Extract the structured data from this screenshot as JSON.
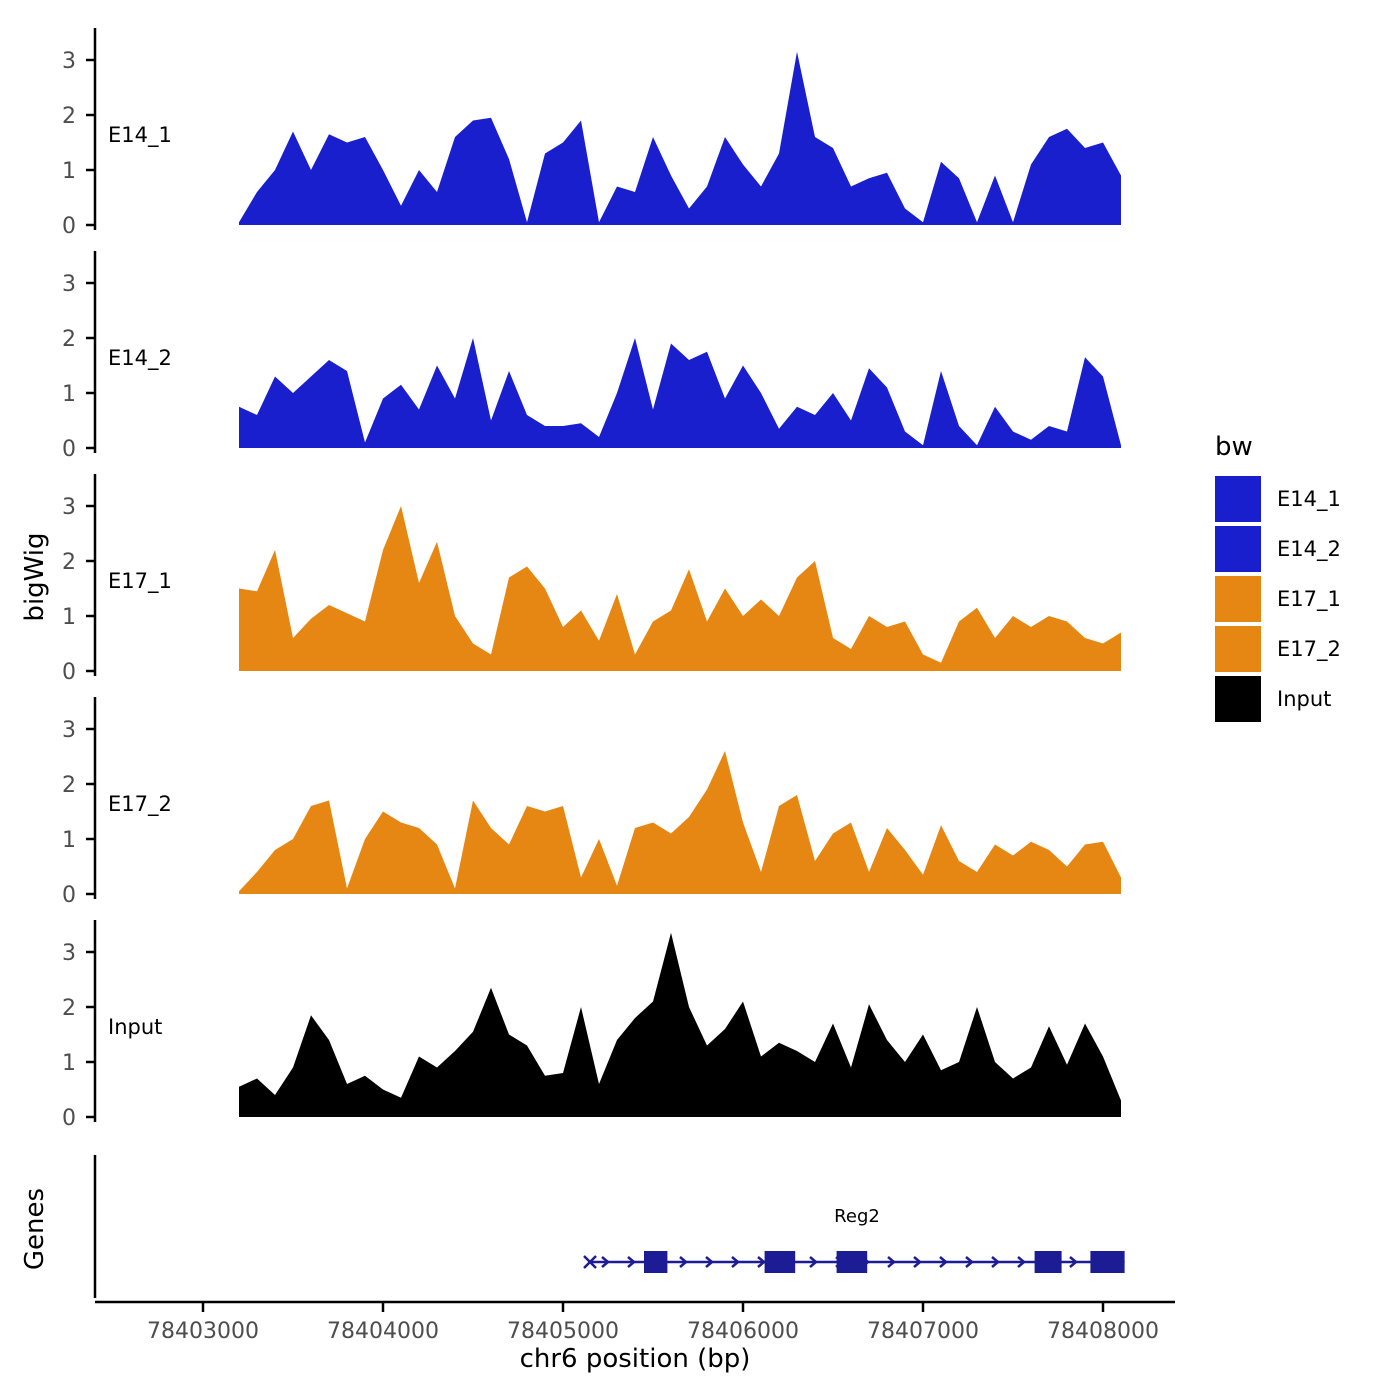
{
  "figure": {
    "y_axis_label": "bigWig",
    "genes_axis_label": "Genes",
    "x_axis_label": "chr6 position (bp)",
    "legend": {
      "title": "bw",
      "items": [
        {
          "label": "E14_1",
          "color": "#1A1FCE"
        },
        {
          "label": "E14_2",
          "color": "#1A1FCE"
        },
        {
          "label": "E17_1",
          "color": "#E68613"
        },
        {
          "label": "E17_2",
          "color": "#E68613"
        },
        {
          "label": "Input",
          "color": "#000000"
        }
      ]
    }
  },
  "chart_data": {
    "type": "area",
    "title": "",
    "xlabel": "chr6 position (bp)",
    "ylabel": "bigWig",
    "x_start": 78403200,
    "x_step": 100,
    "xlim": [
      78402400,
      78408400
    ],
    "ylim": [
      0,
      3.4
    ],
    "x_ticks": [
      78403000,
      78404000,
      78405000,
      78406000,
      78407000,
      78408000
    ],
    "y_ticks": [
      0,
      1,
      2,
      3
    ],
    "grid": false,
    "legend_position": "right",
    "series": [
      {
        "name": "E14_1",
        "color": "#1A1FCE",
        "values": [
          0.05,
          0.6,
          1.0,
          1.7,
          1.0,
          1.65,
          1.5,
          1.6,
          1.0,
          0.35,
          1.0,
          0.6,
          1.6,
          1.9,
          1.95,
          1.2,
          0.05,
          1.3,
          1.5,
          1.9,
          0.05,
          0.7,
          0.6,
          1.6,
          0.9,
          0.3,
          0.7,
          1.6,
          1.1,
          0.7,
          1.3,
          3.15,
          1.6,
          1.4,
          0.7,
          0.85,
          0.95,
          0.3,
          0.05,
          1.15,
          0.85,
          0.05,
          0.9,
          0.05,
          1.1,
          1.6,
          1.75,
          1.4,
          1.5,
          0.9
        ]
      },
      {
        "name": "E14_2",
        "color": "#1A1FCE",
        "values": [
          0.75,
          0.6,
          1.3,
          1.0,
          1.3,
          1.6,
          1.4,
          0.1,
          0.9,
          1.15,
          0.7,
          1.5,
          0.9,
          2.0,
          0.5,
          1.4,
          0.6,
          0.4,
          0.4,
          0.45,
          0.2,
          1.0,
          2.0,
          0.7,
          1.9,
          1.6,
          1.75,
          0.9,
          1.5,
          1.0,
          0.35,
          0.75,
          0.6,
          1.0,
          0.5,
          1.45,
          1.1,
          0.3,
          0.05,
          1.4,
          0.4,
          0.05,
          0.75,
          0.3,
          0.15,
          0.4,
          0.3,
          1.65,
          1.3,
          0.05
        ]
      },
      {
        "name": "E17_1",
        "color": "#E68613",
        "values": [
          1.5,
          1.45,
          2.2,
          0.6,
          0.95,
          1.2,
          1.05,
          0.9,
          2.2,
          3.0,
          1.6,
          2.35,
          1.0,
          0.5,
          0.3,
          1.7,
          1.9,
          1.5,
          0.8,
          1.1,
          0.55,
          1.4,
          0.3,
          0.9,
          1.1,
          1.85,
          0.9,
          1.5,
          1.0,
          1.3,
          1.0,
          1.7,
          2.0,
          0.6,
          0.4,
          1.0,
          0.8,
          0.9,
          0.3,
          0.15,
          0.9,
          1.15,
          0.6,
          1.0,
          0.8,
          1.0,
          0.9,
          0.6,
          0.5,
          0.7
        ]
      },
      {
        "name": "E17_2",
        "color": "#E68613",
        "values": [
          0.05,
          0.4,
          0.8,
          1.0,
          1.6,
          1.7,
          0.1,
          1.0,
          1.5,
          1.3,
          1.2,
          0.9,
          0.1,
          1.7,
          1.2,
          0.9,
          1.6,
          1.5,
          1.6,
          0.3,
          1.0,
          0.15,
          1.2,
          1.3,
          1.1,
          1.4,
          1.9,
          2.6,
          1.3,
          0.4,
          1.6,
          1.8,
          0.6,
          1.1,
          1.3,
          0.4,
          1.2,
          0.8,
          0.35,
          1.25,
          0.6,
          0.4,
          0.9,
          0.7,
          0.95,
          0.8,
          0.5,
          0.9,
          0.95,
          0.3
        ]
      },
      {
        "name": "Input",
        "color": "#000000",
        "values": [
          0.55,
          0.7,
          0.4,
          0.9,
          1.85,
          1.4,
          0.6,
          0.75,
          0.5,
          0.35,
          1.1,
          0.9,
          1.2,
          1.55,
          2.35,
          1.5,
          1.3,
          0.75,
          0.8,
          2.0,
          0.6,
          1.4,
          1.8,
          2.1,
          3.35,
          2.0,
          1.3,
          1.6,
          2.1,
          1.1,
          1.35,
          1.2,
          1.0,
          1.7,
          0.9,
          2.05,
          1.4,
          1.0,
          1.5,
          0.85,
          1.0,
          2.0,
          1.0,
          0.7,
          0.9,
          1.65,
          0.95,
          1.7,
          1.1,
          0.3
        ]
      }
    ],
    "gene_track": {
      "label": "Genes",
      "color": "#1C1C94",
      "gene": {
        "name": "Reg2",
        "start": 78405150,
        "end": 78408120,
        "strand": "+",
        "exons": [
          [
            78405450,
            78405580
          ],
          [
            78406120,
            78406290
          ],
          [
            78406520,
            78406690
          ],
          [
            78407620,
            78407770
          ],
          [
            78407930,
            78408120
          ]
        ]
      }
    }
  }
}
